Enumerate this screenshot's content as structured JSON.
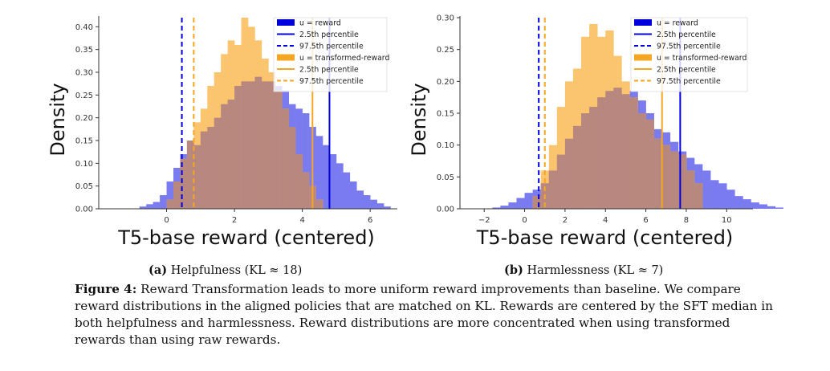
{
  "figure": {
    "label": "Figure 4:",
    "text": "Reward Transformation leads to more uniform reward improvements than baseline. We compare reward distributions in the aligned policies that are matched on KL. Rewards are centered by the SFT median in both helpfulness and harmlessness. Reward distributions are more concentrated when using transformed rewards than using raw rewards."
  },
  "subcaptions": [
    {
      "tag": "(a)",
      "text": "Helpfulness (KL ≈ 18)"
    },
    {
      "tag": "(b)",
      "text": "Harmlessness (KL ≈ 7)"
    }
  ],
  "colors": {
    "u_reward": "#0000dd",
    "transformed": "#f5a623",
    "hist_u": "#7b7bf0",
    "hist_t": "#fbc46e",
    "overlap": "#b8877e"
  },
  "chart_data": [
    {
      "type": "bar",
      "subtype": "histogram-overlay",
      "xlabel": "T5-base reward (centered)",
      "ylabel": "Density",
      "xlim": [
        -2.0,
        6.8
      ],
      "ylim": [
        0,
        0.42
      ],
      "xticks": [
        0,
        2,
        4,
        6
      ],
      "yticks": [
        0.0,
        0.05,
        0.1,
        0.15,
        0.2,
        0.25,
        0.3,
        0.35,
        0.4
      ],
      "ytick_labels": [
        "0.00",
        "0.05",
        "0.10",
        "0.15",
        "0.20",
        "0.25",
        "0.30",
        "0.35",
        "0.40"
      ],
      "bin_width": 0.2,
      "series": [
        {
          "name": "u = reward",
          "x_start": -0.8,
          "values": [
            0.005,
            0.01,
            0.015,
            0.03,
            0.06,
            0.09,
            0.12,
            0.15,
            0.14,
            0.17,
            0.18,
            0.2,
            0.23,
            0.24,
            0.27,
            0.28,
            0.28,
            0.29,
            0.28,
            0.28,
            0.27,
            0.26,
            0.23,
            0.22,
            0.21,
            0.18,
            0.16,
            0.14,
            0.12,
            0.1,
            0.08,
            0.06,
            0.04,
            0.03,
            0.02,
            0.012,
            0.005
          ]
        },
        {
          "name": "u = transformed-reward",
          "x_start": 0.0,
          "values": [
            0.02,
            0.06,
            0.11,
            0.15,
            0.19,
            0.22,
            0.27,
            0.3,
            0.34,
            0.37,
            0.36,
            0.42,
            0.4,
            0.37,
            0.33,
            0.3,
            0.26,
            0.22,
            0.18,
            0.12,
            0.08,
            0.05,
            0.02
          ]
        }
      ],
      "percentile_lines": [
        {
          "series": "u = reward",
          "label": "2.5th percentile",
          "style": "dashed",
          "x": 0.45
        },
        {
          "series": "u = reward",
          "label": "97.5th percentile",
          "style": "solid",
          "x": 4.8
        },
        {
          "series": "u = transformed-reward",
          "label": "2.5th percentile",
          "style": "dashed",
          "x": 0.8
        },
        {
          "series": "u = transformed-reward",
          "label": "97.5th percentile",
          "style": "solid",
          "x": 4.3
        }
      ],
      "legend": {
        "position": "top-right",
        "entries": [
          "u = reward",
          "2.5th percentile",
          "97.5th percentile",
          "u = transformed-reward",
          "2.5th percentile",
          "97.5th percentile"
        ]
      }
    },
    {
      "type": "bar",
      "subtype": "histogram-overlay",
      "xlabel": "T5-base reward (centered)",
      "ylabel": "Density",
      "xlim": [
        -3.2,
        11.3
      ],
      "ylim": [
        0,
        0.3
      ],
      "xticks": [
        -2,
        0,
        2,
        4,
        6,
        8,
        10
      ],
      "xtick_labels": [
        "−2",
        "0",
        "2",
        "4",
        "6",
        "8",
        "10"
      ],
      "yticks": [
        0.0,
        0.05,
        0.1,
        0.15,
        0.2,
        0.25,
        0.3
      ],
      "ytick_labels": [
        "0.00",
        "0.05",
        "0.10",
        "0.15",
        "0.20",
        "0.25",
        "0.30"
      ],
      "bin_width": 0.4,
      "series": [
        {
          "name": "u = reward",
          "x_start": -1.6,
          "values": [
            0.002,
            0.005,
            0.01,
            0.017,
            0.025,
            0.03,
            0.04,
            0.06,
            0.085,
            0.11,
            0.13,
            0.15,
            0.16,
            0.175,
            0.185,
            0.19,
            0.18,
            0.185,
            0.17,
            0.15,
            0.125,
            0.12,
            0.105,
            0.09,
            0.08,
            0.07,
            0.06,
            0.045,
            0.04,
            0.03,
            0.02,
            0.015,
            0.01,
            0.007,
            0.004,
            0.002
          ]
        },
        {
          "name": "u = transformed-reward",
          "x_start": 0.4,
          "values": [
            0.02,
            0.06,
            0.1,
            0.16,
            0.2,
            0.22,
            0.27,
            0.29,
            0.27,
            0.28,
            0.24,
            0.2,
            0.175,
            0.15,
            0.14,
            0.11,
            0.1,
            0.09,
            0.085,
            0.06,
            0.04
          ]
        }
      ],
      "percentile_lines": [
        {
          "series": "u = reward",
          "label": "2.5th percentile",
          "style": "dashed",
          "x": 0.7
        },
        {
          "series": "u = reward",
          "label": "97.5th percentile",
          "style": "solid",
          "x": 7.7
        },
        {
          "series": "u = transformed-reward",
          "label": "2.5th percentile",
          "style": "dashed",
          "x": 1.0
        },
        {
          "series": "u = transformed-reward",
          "label": "97.5th percentile",
          "style": "solid",
          "x": 6.8
        }
      ],
      "legend": {
        "position": "top-right",
        "entries": [
          "u = reward",
          "2.5th percentile",
          "97.5th percentile",
          "u = transformed-reward",
          "2.5th percentile",
          "97.5th percentile"
        ]
      }
    }
  ]
}
